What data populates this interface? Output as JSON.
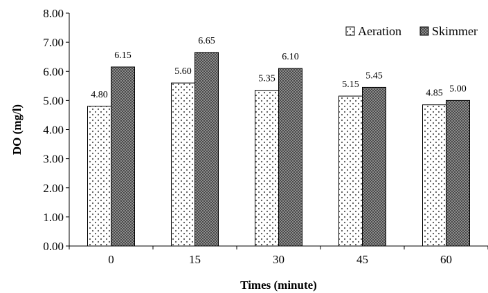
{
  "chart_data": {
    "type": "bar",
    "categories": [
      "0",
      "15",
      "30",
      "45",
      "60"
    ],
    "series": [
      {
        "name": "Aeration",
        "values": [
          4.8,
          5.6,
          5.35,
          5.15,
          4.85
        ],
        "labels": [
          "4.80",
          "5.60",
          "5.35",
          "5.15",
          "4.85"
        ],
        "pattern": "dotted",
        "color": "#ffffff"
      },
      {
        "name": "Skimmer",
        "values": [
          6.15,
          6.65,
          6.1,
          5.45,
          5.0
        ],
        "labels": [
          "6.15",
          "6.65",
          "6.10",
          "5.45",
          "5.00"
        ],
        "pattern": "checkered",
        "color": "#7a7a7a"
      }
    ],
    "title": "",
    "xlabel": "Times (minute)",
    "ylabel": "DO (mg/l)",
    "ylim": [
      0,
      8
    ],
    "yticks": [
      "0.00",
      "1.00",
      "2.00",
      "3.00",
      "4.00",
      "5.00",
      "6.00",
      "7.00",
      "8.00"
    ],
    "grid": false,
    "legend_position": "top-right"
  }
}
